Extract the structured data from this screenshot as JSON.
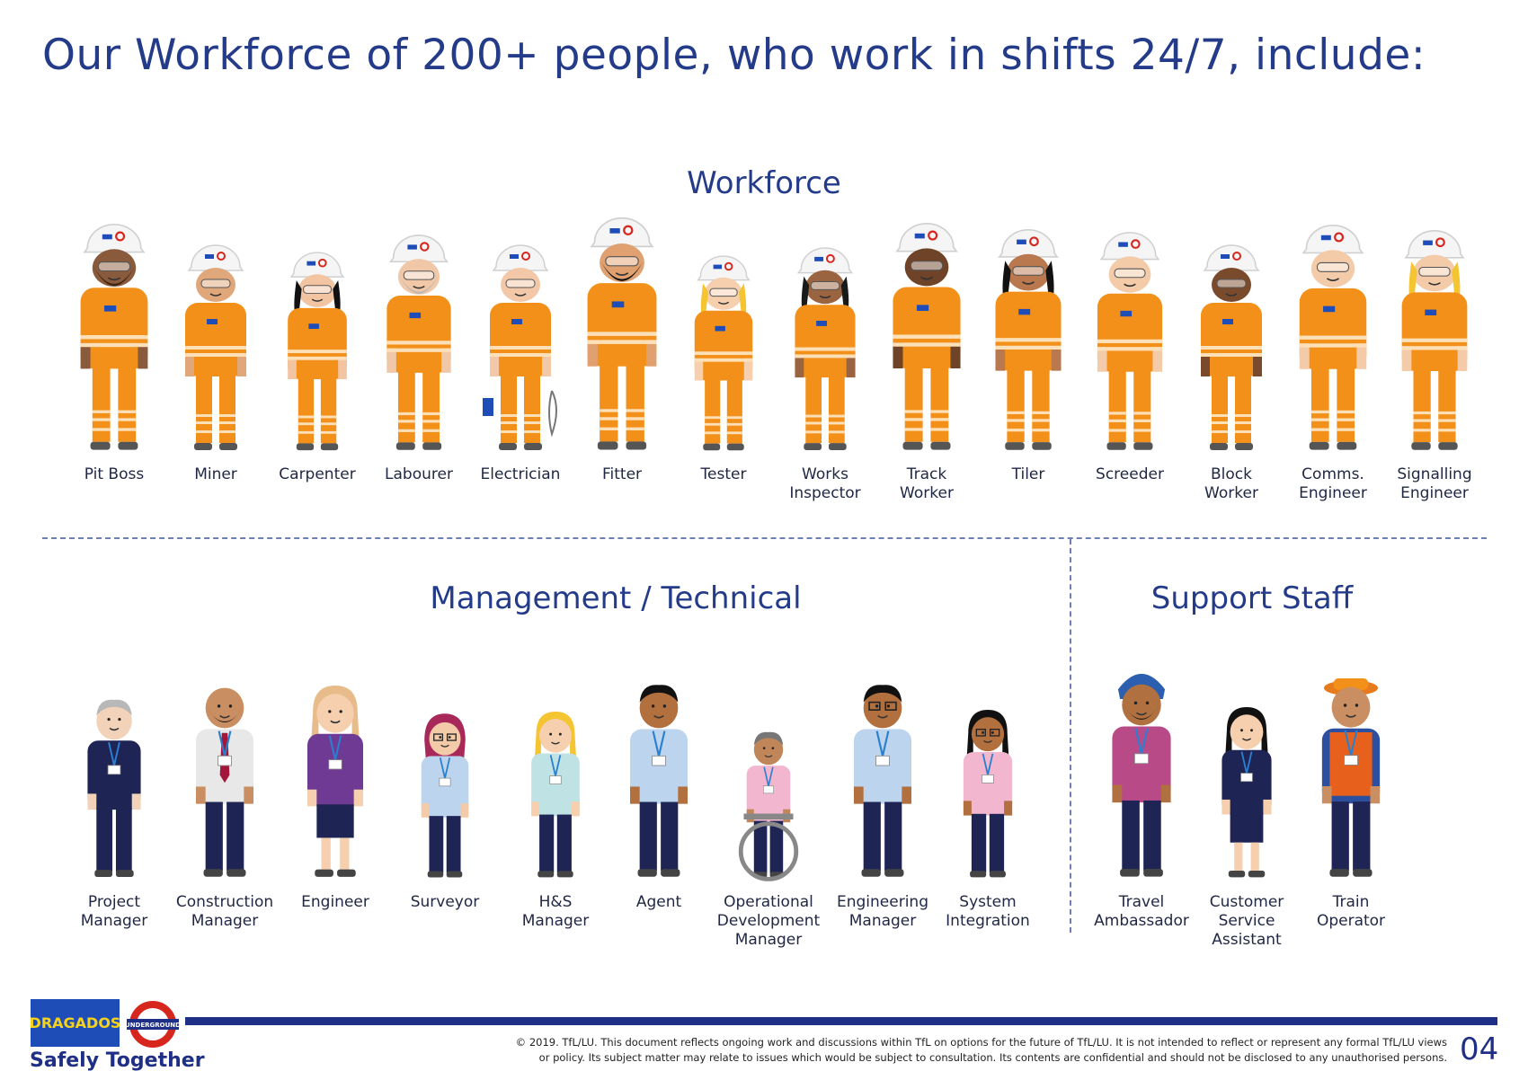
{
  "title": "Our Workforce of 200+ people, who work in shifts 24/7, include:",
  "sections": {
    "workforce": "Workforce",
    "management": "Management / Technical",
    "support": "Support Staff"
  },
  "workforce": [
    {
      "l1": "Pit Boss",
      "l2": ""
    },
    {
      "l1": "Miner",
      "l2": ""
    },
    {
      "l1": "Carpenter",
      "l2": ""
    },
    {
      "l1": "Labourer",
      "l2": ""
    },
    {
      "l1": "Electrician",
      "l2": ""
    },
    {
      "l1": "Fitter",
      "l2": ""
    },
    {
      "l1": "Tester",
      "l2": ""
    },
    {
      "l1": "Works",
      "l2": "Inspector"
    },
    {
      "l1": "Track",
      "l2": "Worker"
    },
    {
      "l1": "Tiler",
      "l2": ""
    },
    {
      "l1": "Screeder",
      "l2": ""
    },
    {
      "l1": "Block",
      "l2": "Worker"
    },
    {
      "l1": "Comms.",
      "l2": "Engineer"
    },
    {
      "l1": "Signalling",
      "l2": "Engineer"
    }
  ],
  "management": [
    {
      "l1": "Project",
      "l2": "Manager",
      "l3": ""
    },
    {
      "l1": "Construction",
      "l2": "Manager",
      "l3": ""
    },
    {
      "l1": "Engineer",
      "l2": "",
      "l3": ""
    },
    {
      "l1": "Surveyor",
      "l2": "",
      "l3": ""
    },
    {
      "l1": "H&S",
      "l2": "Manager",
      "l3": ""
    },
    {
      "l1": "Agent",
      "l2": "",
      "l3": ""
    },
    {
      "l1": "Operational",
      "l2": "Development",
      "l3": "Manager"
    },
    {
      "l1": "Engineering",
      "l2": "Manager",
      "l3": ""
    },
    {
      "l1": "System",
      "l2": "Integration",
      "l3": ""
    }
  ],
  "support": [
    {
      "l1": "Travel",
      "l2": "Ambassador",
      "l3": ""
    },
    {
      "l1": "Customer",
      "l2": "Service",
      "l3": "Assistant"
    },
    {
      "l1": "Train",
      "l2": "Operator",
      "l3": ""
    }
  ],
  "footer": {
    "logo_text": "DRAGADOS",
    "roundel_text": "UNDERGROUND",
    "tagline": "Safely Together",
    "disclaimer_1": "© 2019. TfL/LU. This document reflects ongoing work and discussions within TfL on options for the future of TfL/LU. It is not intended to reflect or represent any formal TfL/LU views",
    "disclaimer_2": "or policy. Its subject matter may relate to issues which would be subject to consultation. Its contents are confidential and should not be disclosed to any unauthorised persons.",
    "page_number": "04"
  },
  "colors": {
    "brand_blue": "#243b8a",
    "orange": "#f39019",
    "navy": "#1e2454"
  }
}
